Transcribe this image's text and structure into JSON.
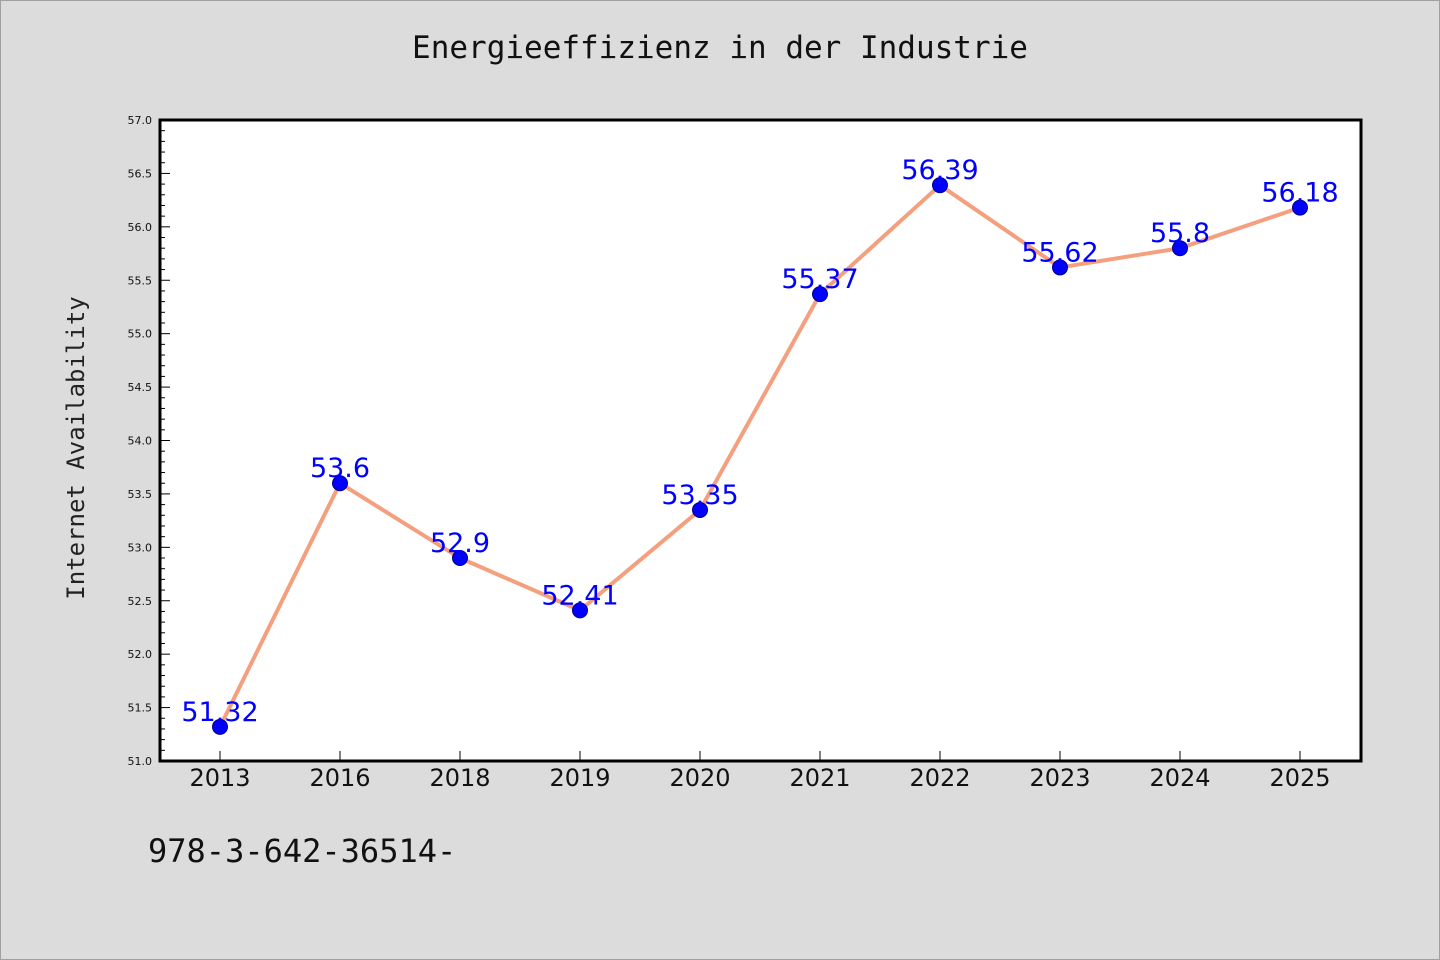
{
  "chart_data": {
    "type": "line",
    "title": "Energieeffizienz in der Industrie",
    "xlabel": "",
    "ylabel": "Internet Availability",
    "categories": [
      "2013",
      "2016",
      "2018",
      "2019",
      "2020",
      "2021",
      "2022",
      "2023",
      "2024",
      "2025"
    ],
    "series": [
      {
        "values": [
          51.32,
          53.6,
          52.9,
          52.41,
          53.35,
          55.37,
          56.39,
          55.62,
          55.8,
          56.18
        ],
        "labels": [
          "51.32",
          "53.6",
          "52.9",
          "52.41",
          "53.35",
          "55.37",
          "56.39",
          "55.62",
          "55.8",
          "56.18"
        ],
        "line_color": "#f4a07e",
        "marker_color": "#0000ff"
      }
    ],
    "ylim": [
      51.0,
      57.0
    ],
    "yticks": [
      "51.0",
      "51.5",
      "52.0",
      "52.5",
      "53.0",
      "53.5",
      "54.0",
      "54.5",
      "55.0",
      "55.5",
      "56.0",
      "56.5",
      "57.0"
    ],
    "grid": false,
    "legend": "none"
  },
  "footer_text": "978-3-642-36514-",
  "colors": {
    "background": "#dcdcdc",
    "plot_area": "#ffffff",
    "line": "#f4a07e",
    "marker": "#0000ff",
    "data_label": "#0000ff"
  }
}
